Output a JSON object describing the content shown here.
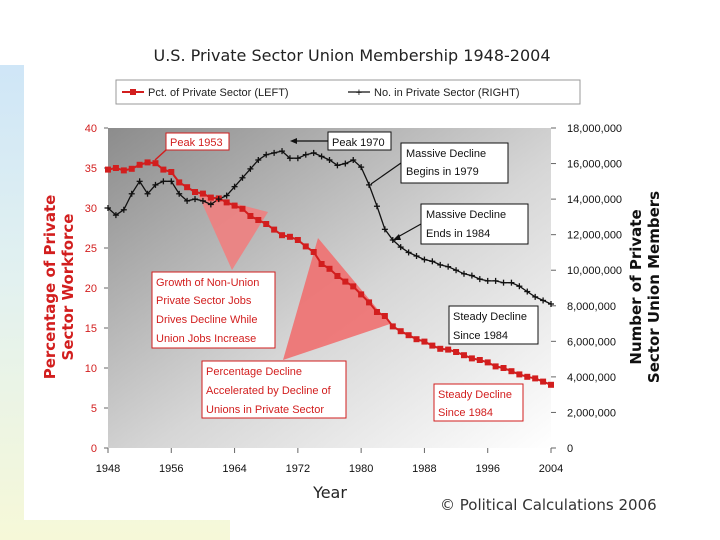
{
  "chart_data": {
    "type": "line",
    "title": "U.S. Private Sector Union Membership 1948-2004",
    "xlabel": "Year",
    "ylabel_left": "Percentage of Private Sector Workforce",
    "ylabel_right": "Number of Private Sector Union Members",
    "x_ticks": [
      "1948",
      "1956",
      "1964",
      "1972",
      "1980",
      "1988",
      "1996",
      "2004"
    ],
    "y_left_ticks": [
      "0",
      "5",
      "10",
      "15",
      "20",
      "25",
      "30",
      "35",
      "40"
    ],
    "y_right_ticks": [
      "0",
      "2,000,000",
      "4,000,000",
      "6,000,000",
      "8,000,000",
      "10,000,000",
      "12,000,000",
      "14,000,000",
      "16,000,000",
      "18,000,000"
    ],
    "xlim": [
      1948,
      2004
    ],
    "ylim_left": [
      0,
      40
    ],
    "ylim_right": [
      0,
      18000000
    ],
    "grid": false,
    "legend_position": "top",
    "series": [
      {
        "name": "Pct. of Private Sector (LEFT)",
        "axis": "left",
        "color": "#d21e1e",
        "marker": "square",
        "x": [
          1948,
          1949,
          1950,
          1951,
          1952,
          1953,
          1954,
          1955,
          1956,
          1957,
          1958,
          1959,
          1960,
          1961,
          1962,
          1963,
          1964,
          1965,
          1966,
          1967,
          1968,
          1969,
          1970,
          1971,
          1972,
          1973,
          1974,
          1975,
          1976,
          1977,
          1978,
          1979,
          1980,
          1981,
          1982,
          1983,
          1984,
          1985,
          1986,
          1987,
          1988,
          1989,
          1990,
          1991,
          1992,
          1993,
          1994,
          1995,
          1996,
          1997,
          1998,
          1999,
          2000,
          2001,
          2002,
          2003,
          2004
        ],
        "values": [
          34.8,
          35.0,
          34.7,
          34.9,
          35.4,
          35.7,
          35.6,
          34.8,
          34.5,
          33.2,
          32.6,
          32.0,
          31.8,
          31.3,
          31.2,
          30.7,
          30.3,
          29.9,
          29.0,
          28.5,
          28.0,
          27.3,
          26.6,
          26.4,
          26.0,
          25.2,
          24.5,
          23.0,
          22.4,
          21.5,
          20.8,
          20.2,
          19.2,
          18.2,
          17.0,
          16.5,
          15.2,
          14.6,
          14.1,
          13.6,
          13.3,
          12.8,
          12.4,
          12.3,
          12.0,
          11.6,
          11.2,
          11.0,
          10.7,
          10.2,
          10.0,
          9.6,
          9.2,
          8.9,
          8.7,
          8.3,
          7.9
        ]
      },
      {
        "name": "No. in Private Sector (RIGHT)",
        "axis": "right",
        "color": "#111111",
        "marker": "plus",
        "x": [
          1948,
          1949,
          1950,
          1951,
          1952,
          1953,
          1954,
          1955,
          1956,
          1957,
          1958,
          1959,
          1960,
          1961,
          1962,
          1963,
          1964,
          1965,
          1966,
          1967,
          1968,
          1969,
          1970,
          1971,
          1972,
          1973,
          1974,
          1975,
          1976,
          1977,
          1978,
          1979,
          1980,
          1981,
          1982,
          1983,
          1984,
          1985,
          1986,
          1987,
          1988,
          1989,
          1990,
          1991,
          1992,
          1993,
          1994,
          1995,
          1996,
          1997,
          1998,
          1999,
          2000,
          2001,
          2002,
          2003,
          2004
        ],
        "values": [
          13500000,
          13100000,
          13400000,
          14300000,
          15000000,
          14300000,
          14800000,
          15000000,
          15000000,
          14300000,
          13900000,
          14000000,
          13900000,
          13700000,
          14000000,
          14200000,
          14700000,
          15200000,
          15700000,
          16200000,
          16500000,
          16600000,
          16700000,
          16300000,
          16300000,
          16500000,
          16600000,
          16400000,
          16200000,
          15900000,
          16000000,
          16200000,
          15800000,
          14800000,
          13600000,
          12300000,
          11700000,
          11300000,
          11000000,
          10800000,
          10600000,
          10500000,
          10300000,
          10200000,
          10000000,
          9800000,
          9700000,
          9500000,
          9400000,
          9400000,
          9300000,
          9300000,
          9100000,
          8800000,
          8500000,
          8300000,
          8100000
        ]
      }
    ],
    "annotations": {
      "peak_1953": "Peak 1953",
      "peak_1970": "Peak 1970",
      "massive_decline_begins": [
        "Massive Decline",
        "Begins in 1979"
      ],
      "massive_decline_ends": [
        "Massive Decline",
        "Ends in 1984"
      ],
      "growth_non_union": [
        "Growth of Non-Union",
        "Private Sector Jobs",
        "Drives Decline While",
        "Union Jobs Increase"
      ],
      "pct_decline": [
        "Percentage Decline",
        "Accelerated by Decline of",
        "Unions in Private Sector"
      ],
      "steady_decline_black": [
        "Steady Decline",
        "Since 1984"
      ],
      "steady_decline_red": [
        "Steady Decline",
        "Since 1984"
      ]
    },
    "credit": "© Political Calculations 2006"
  }
}
